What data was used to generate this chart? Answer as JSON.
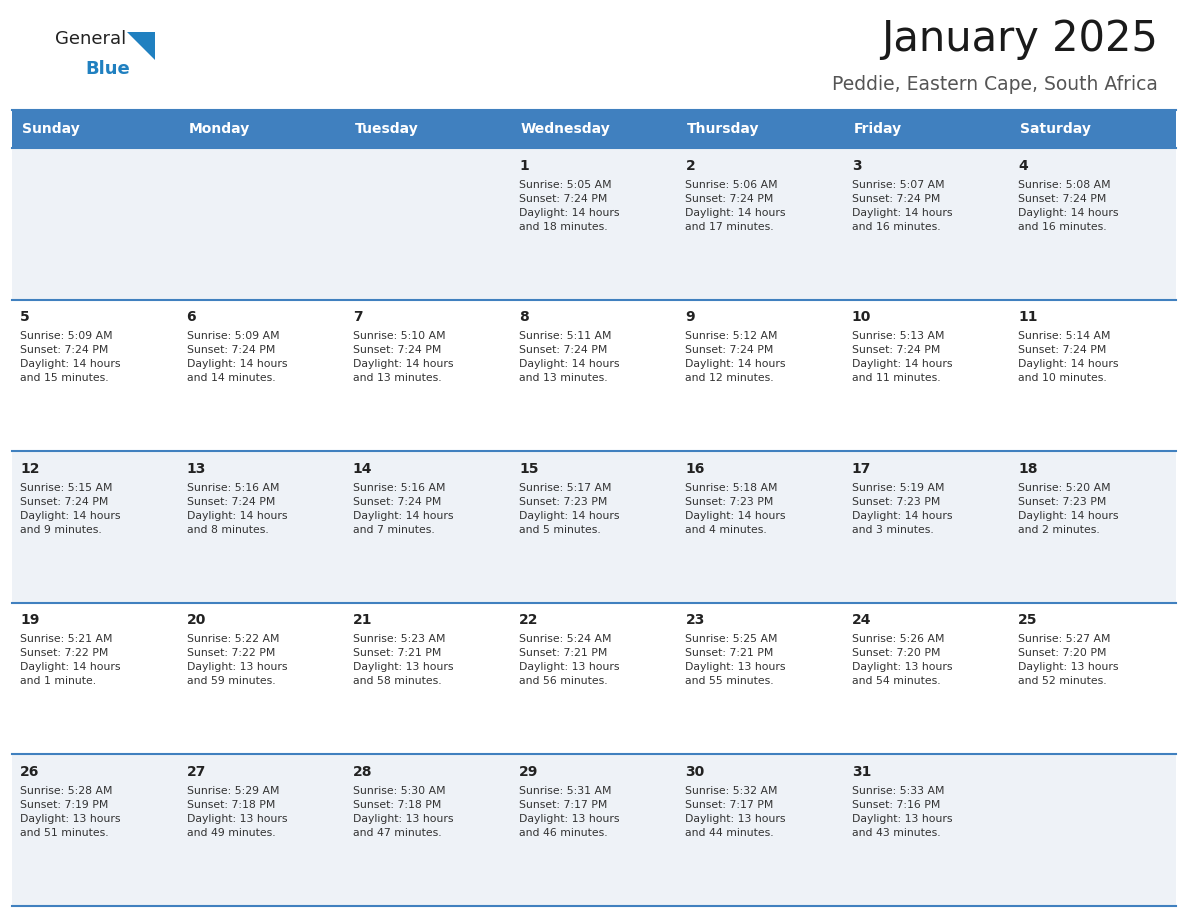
{
  "title": "January 2025",
  "subtitle": "Peddie, Eastern Cape, South Africa",
  "days_of_week": [
    "Sunday",
    "Monday",
    "Tuesday",
    "Wednesday",
    "Thursday",
    "Friday",
    "Saturday"
  ],
  "header_bg": "#4080bf",
  "header_text": "#ffffff",
  "row_bg_odd": "#eef2f7",
  "row_bg_even": "#ffffff",
  "cell_text_color": "#333333",
  "day_num_color": "#222222",
  "border_color": "#4080bf",
  "title_color": "#1a1a1a",
  "subtitle_color": "#555555",
  "logo_general_color": "#222222",
  "logo_blue_color": "#2080c0",
  "calendar_data": [
    [
      {
        "day": 0,
        "info": ""
      },
      {
        "day": 0,
        "info": ""
      },
      {
        "day": 0,
        "info": ""
      },
      {
        "day": 1,
        "info": "Sunrise: 5:05 AM\nSunset: 7:24 PM\nDaylight: 14 hours\nand 18 minutes."
      },
      {
        "day": 2,
        "info": "Sunrise: 5:06 AM\nSunset: 7:24 PM\nDaylight: 14 hours\nand 17 minutes."
      },
      {
        "day": 3,
        "info": "Sunrise: 5:07 AM\nSunset: 7:24 PM\nDaylight: 14 hours\nand 16 minutes."
      },
      {
        "day": 4,
        "info": "Sunrise: 5:08 AM\nSunset: 7:24 PM\nDaylight: 14 hours\nand 16 minutes."
      }
    ],
    [
      {
        "day": 5,
        "info": "Sunrise: 5:09 AM\nSunset: 7:24 PM\nDaylight: 14 hours\nand 15 minutes."
      },
      {
        "day": 6,
        "info": "Sunrise: 5:09 AM\nSunset: 7:24 PM\nDaylight: 14 hours\nand 14 minutes."
      },
      {
        "day": 7,
        "info": "Sunrise: 5:10 AM\nSunset: 7:24 PM\nDaylight: 14 hours\nand 13 minutes."
      },
      {
        "day": 8,
        "info": "Sunrise: 5:11 AM\nSunset: 7:24 PM\nDaylight: 14 hours\nand 13 minutes."
      },
      {
        "day": 9,
        "info": "Sunrise: 5:12 AM\nSunset: 7:24 PM\nDaylight: 14 hours\nand 12 minutes."
      },
      {
        "day": 10,
        "info": "Sunrise: 5:13 AM\nSunset: 7:24 PM\nDaylight: 14 hours\nand 11 minutes."
      },
      {
        "day": 11,
        "info": "Sunrise: 5:14 AM\nSunset: 7:24 PM\nDaylight: 14 hours\nand 10 minutes."
      }
    ],
    [
      {
        "day": 12,
        "info": "Sunrise: 5:15 AM\nSunset: 7:24 PM\nDaylight: 14 hours\nand 9 minutes."
      },
      {
        "day": 13,
        "info": "Sunrise: 5:16 AM\nSunset: 7:24 PM\nDaylight: 14 hours\nand 8 minutes."
      },
      {
        "day": 14,
        "info": "Sunrise: 5:16 AM\nSunset: 7:24 PM\nDaylight: 14 hours\nand 7 minutes."
      },
      {
        "day": 15,
        "info": "Sunrise: 5:17 AM\nSunset: 7:23 PM\nDaylight: 14 hours\nand 5 minutes."
      },
      {
        "day": 16,
        "info": "Sunrise: 5:18 AM\nSunset: 7:23 PM\nDaylight: 14 hours\nand 4 minutes."
      },
      {
        "day": 17,
        "info": "Sunrise: 5:19 AM\nSunset: 7:23 PM\nDaylight: 14 hours\nand 3 minutes."
      },
      {
        "day": 18,
        "info": "Sunrise: 5:20 AM\nSunset: 7:23 PM\nDaylight: 14 hours\nand 2 minutes."
      }
    ],
    [
      {
        "day": 19,
        "info": "Sunrise: 5:21 AM\nSunset: 7:22 PM\nDaylight: 14 hours\nand 1 minute."
      },
      {
        "day": 20,
        "info": "Sunrise: 5:22 AM\nSunset: 7:22 PM\nDaylight: 13 hours\nand 59 minutes."
      },
      {
        "day": 21,
        "info": "Sunrise: 5:23 AM\nSunset: 7:21 PM\nDaylight: 13 hours\nand 58 minutes."
      },
      {
        "day": 22,
        "info": "Sunrise: 5:24 AM\nSunset: 7:21 PM\nDaylight: 13 hours\nand 56 minutes."
      },
      {
        "day": 23,
        "info": "Sunrise: 5:25 AM\nSunset: 7:21 PM\nDaylight: 13 hours\nand 55 minutes."
      },
      {
        "day": 24,
        "info": "Sunrise: 5:26 AM\nSunset: 7:20 PM\nDaylight: 13 hours\nand 54 minutes."
      },
      {
        "day": 25,
        "info": "Sunrise: 5:27 AM\nSunset: 7:20 PM\nDaylight: 13 hours\nand 52 minutes."
      }
    ],
    [
      {
        "day": 26,
        "info": "Sunrise: 5:28 AM\nSunset: 7:19 PM\nDaylight: 13 hours\nand 51 minutes."
      },
      {
        "day": 27,
        "info": "Sunrise: 5:29 AM\nSunset: 7:18 PM\nDaylight: 13 hours\nand 49 minutes."
      },
      {
        "day": 28,
        "info": "Sunrise: 5:30 AM\nSunset: 7:18 PM\nDaylight: 13 hours\nand 47 minutes."
      },
      {
        "day": 29,
        "info": "Sunrise: 5:31 AM\nSunset: 7:17 PM\nDaylight: 13 hours\nand 46 minutes."
      },
      {
        "day": 30,
        "info": "Sunrise: 5:32 AM\nSunset: 7:17 PM\nDaylight: 13 hours\nand 44 minutes."
      },
      {
        "day": 31,
        "info": "Sunrise: 5:33 AM\nSunset: 7:16 PM\nDaylight: 13 hours\nand 43 minutes."
      },
      {
        "day": 0,
        "info": ""
      }
    ]
  ]
}
